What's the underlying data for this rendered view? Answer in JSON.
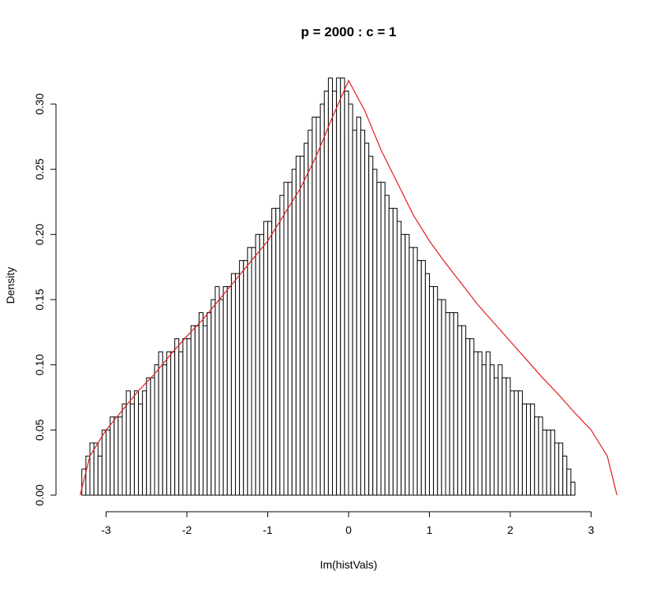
{
  "chart_data": {
    "type": "histogram",
    "title": "p = 2000 : c = 1",
    "xlabel": "Im(histVals)",
    "ylabel": "Density",
    "xlim": [
      -3.3,
      3.3
    ],
    "ylim": [
      0,
      0.32
    ],
    "x_ticks": [
      -3,
      -2,
      -1,
      0,
      1,
      2,
      3
    ],
    "x_tick_labels": [
      "-3",
      "-2",
      "-1",
      "0",
      "1",
      "2",
      "3"
    ],
    "y_ticks": [
      0.0,
      0.05,
      0.1,
      0.15,
      0.2,
      0.25,
      0.3
    ],
    "y_tick_labels": [
      "0.00",
      "0.05",
      "0.10",
      "0.15",
      "0.20",
      "0.25",
      "0.30"
    ],
    "bin_start": -3.3,
    "bin_width": 0.05,
    "densities": [
      0.02,
      0.03,
      0.04,
      0.04,
      0.03,
      0.05,
      0.05,
      0.06,
      0.06,
      0.06,
      0.07,
      0.08,
      0.07,
      0.08,
      0.07,
      0.08,
      0.09,
      0.09,
      0.1,
      0.11,
      0.1,
      0.11,
      0.11,
      0.12,
      0.11,
      0.12,
      0.12,
      0.13,
      0.13,
      0.14,
      0.13,
      0.14,
      0.15,
      0.16,
      0.15,
      0.16,
      0.16,
      0.17,
      0.17,
      0.18,
      0.18,
      0.19,
      0.19,
      0.2,
      0.2,
      0.21,
      0.21,
      0.22,
      0.22,
      0.23,
      0.24,
      0.24,
      0.25,
      0.26,
      0.26,
      0.27,
      0.28,
      0.29,
      0.29,
      0.3,
      0.31,
      0.32,
      0.31,
      0.32,
      0.32,
      0.31,
      0.3,
      0.28,
      0.29,
      0.28,
      0.27,
      0.26,
      0.25,
      0.24,
      0.24,
      0.23,
      0.22,
      0.22,
      0.21,
      0.2,
      0.2,
      0.19,
      0.19,
      0.18,
      0.18,
      0.17,
      0.16,
      0.16,
      0.15,
      0.15,
      0.14,
      0.14,
      0.14,
      0.13,
      0.13,
      0.12,
      0.12,
      0.11,
      0.11,
      0.1,
      0.11,
      0.1,
      0.09,
      0.1,
      0.09,
      0.09,
      0.08,
      0.08,
      0.08,
      0.07,
      0.07,
      0.07,
      0.06,
      0.06,
      0.05,
      0.05,
      0.05,
      0.04,
      0.04,
      0.03,
      0.02,
      0.01
    ],
    "density_curve": {
      "color": "#e41a1c",
      "x": [
        -3.32,
        -3.2,
        -3.0,
        -2.8,
        -2.6,
        -2.4,
        -2.2,
        -2.0,
        -1.8,
        -1.6,
        -1.4,
        -1.2,
        -1.0,
        -0.8,
        -0.6,
        -0.4,
        -0.2,
        0.0,
        0.2,
        0.4,
        0.6,
        0.8,
        1.0,
        1.2,
        1.4,
        1.6,
        1.8,
        2.0,
        2.2,
        2.4,
        2.6,
        2.8,
        3.0,
        3.2,
        3.32
      ],
      "y": [
        0.0,
        0.03,
        0.05,
        0.065,
        0.08,
        0.093,
        0.108,
        0.122,
        0.135,
        0.15,
        0.165,
        0.18,
        0.195,
        0.215,
        0.235,
        0.26,
        0.29,
        0.318,
        0.295,
        0.265,
        0.24,
        0.215,
        0.195,
        0.178,
        0.162,
        0.146,
        0.132,
        0.118,
        0.104,
        0.09,
        0.077,
        0.063,
        0.05,
        0.03,
        0.0
      ]
    }
  }
}
